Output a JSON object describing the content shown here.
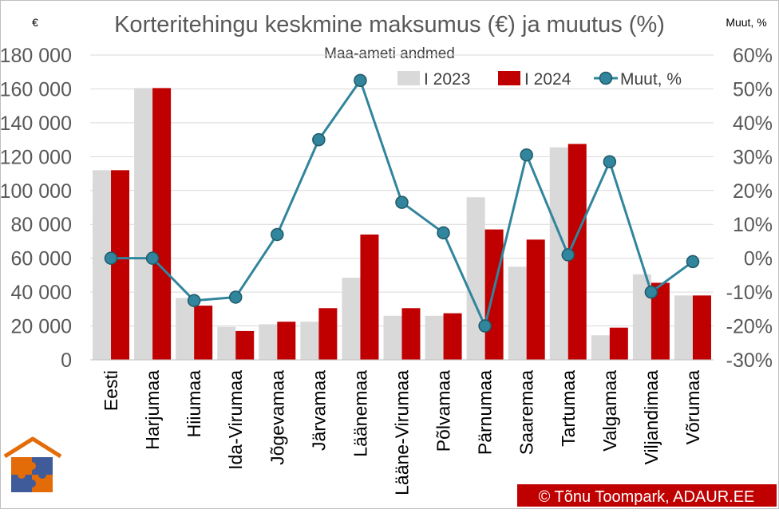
{
  "chart_data": {
    "type": "bar",
    "title": "Korteritehingu keskmine maksumus (€) ja muutus (%)",
    "subtitle": "Maa-ameti andmed",
    "y_left_label": "€",
    "y_right_label": "Muut, %",
    "categories": [
      "Eesti",
      "Harjumaa",
      "Hiiumaa",
      "Ida-Virumaa",
      "Jõgevamaa",
      "Järvamaa",
      "Läänemaa",
      "Lääne-Virumaa",
      "Põlvamaa",
      "Pärnumaa",
      "Saaremaa",
      "Tartumaa",
      "Valgamaa",
      "Viljandimaa",
      "Võrumaa"
    ],
    "series": [
      {
        "name": "I 2023",
        "type": "bar",
        "axis": "left",
        "color": "#d9d9d9",
        "values": [
          112000,
          160500,
          36500,
          19500,
          21000,
          22500,
          48500,
          26000,
          26000,
          96000,
          55000,
          125500,
          14500,
          50500,
          38000
        ]
      },
      {
        "name": "I 2024",
        "type": "bar",
        "axis": "left",
        "color": "#c00000",
        "values": [
          112000,
          160500,
          32000,
          17000,
          22500,
          30500,
          74000,
          30500,
          27500,
          77000,
          71000,
          127500,
          19000,
          45500,
          38000
        ]
      },
      {
        "name": "Muut, %",
        "type": "line",
        "axis": "right",
        "color": "#31859c",
        "values": [
          0,
          0,
          -12.5,
          -11.5,
          7,
          35,
          52.5,
          16.5,
          7.5,
          -20,
          30.5,
          1,
          28.5,
          -10,
          -1
        ]
      }
    ],
    "y_left": {
      "min": 0,
      "max": 180000,
      "step": 20000,
      "tick_labels": [
        "0",
        "20 000",
        "40 000",
        "60 000",
        "80 000",
        "100 000",
        "120 000",
        "140 000",
        "160 000",
        "180 000"
      ]
    },
    "y_right": {
      "min": -30,
      "max": 60,
      "step": 10,
      "tick_labels": [
        "-30%",
        "-20%",
        "-10%",
        "0%",
        "10%",
        "20%",
        "30%",
        "40%",
        "50%",
        "60%"
      ]
    },
    "grid": true,
    "legend_position": "top-right"
  },
  "footer": {
    "credit": "© Tõnu Toompark, ADAUR.EE"
  },
  "logo": {
    "icon": "house-puzzle-logo-icon"
  }
}
